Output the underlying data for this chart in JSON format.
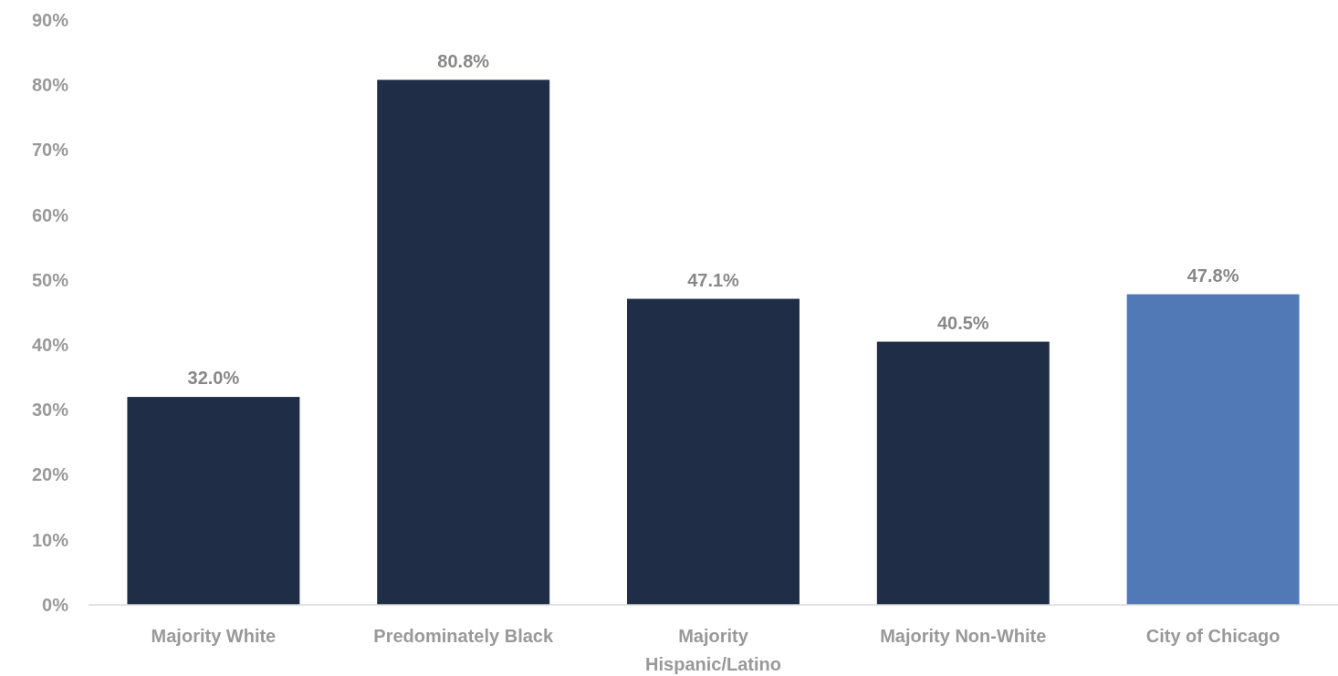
{
  "chart_data": {
    "type": "bar",
    "categories": [
      "Majority White",
      "Predominately Black",
      "Majority\nHispanic/Latino",
      "Majority Non-White",
      "City of Chicago"
    ],
    "values": [
      32.0,
      80.8,
      47.1,
      40.5,
      47.8
    ],
    "colors": [
      "#1f2d46",
      "#1f2d46",
      "#1f2d46",
      "#1f2d46",
      "#5079b6"
    ],
    "value_labels": [
      "32.0%",
      "80.8%",
      "47.1%",
      "40.5%",
      "47.8%"
    ],
    "ylim": [
      0,
      90
    ],
    "yticks": [
      {
        "value": 0,
        "label": "0%"
      },
      {
        "value": 10,
        "label": "10%"
      },
      {
        "value": 20,
        "label": "20%"
      },
      {
        "value": 30,
        "label": "30%"
      },
      {
        "value": 40,
        "label": "40%"
      },
      {
        "value": 50,
        "label": "50%"
      },
      {
        "value": 60,
        "label": "60%"
      },
      {
        "value": 70,
        "label": "70%"
      },
      {
        "value": 80,
        "label": "80%"
      },
      {
        "value": 90,
        "label": "90%"
      }
    ],
    "grid": false
  }
}
